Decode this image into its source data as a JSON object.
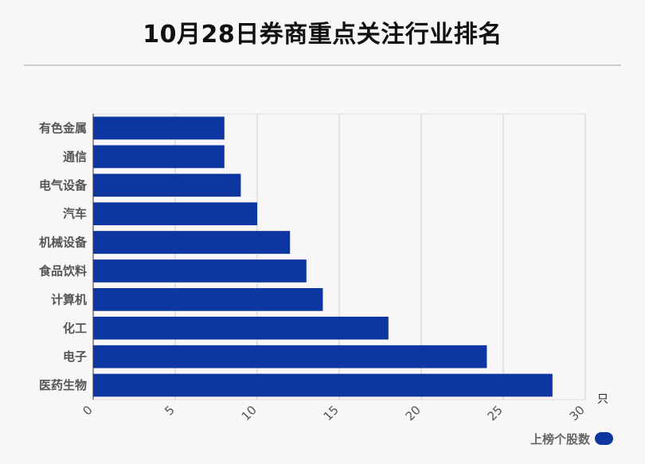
{
  "chart_data": {
    "type": "bar",
    "orientation": "horizontal",
    "title": "10月28日券商重点关注行业排名",
    "categories": [
      "有色金属",
      "通信",
      "电气设备",
      "汽车",
      "机械设备",
      "食品饮料",
      "计算机",
      "化工",
      "电子",
      "医药生物"
    ],
    "series": [
      {
        "name": "上榜个股数",
        "values": [
          8,
          8,
          9,
          10,
          12,
          13,
          14,
          18,
          24,
          28
        ]
      }
    ],
    "xlim": [
      0,
      30
    ],
    "xticks": [
      "0",
      "5",
      "10",
      "15",
      "20",
      "25",
      "30"
    ],
    "x_unit": "只",
    "grid": true,
    "legend_position": "bottom-right",
    "bar_color": "#0d36a0"
  }
}
